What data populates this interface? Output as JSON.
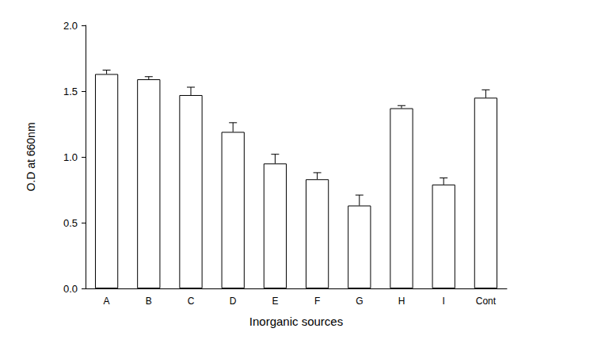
{
  "chart_data": {
    "type": "bar",
    "x_label": "Inorganic sources",
    "y_label": "O.D at 660nm",
    "categories": [
      "A",
      "B",
      "C",
      "D",
      "E",
      "F",
      "G",
      "H",
      "I",
      "Cont"
    ],
    "values": [
      1.63,
      1.59,
      1.47,
      1.19,
      0.95,
      0.83,
      0.63,
      1.37,
      0.79,
      1.45
    ],
    "errors": [
      0.03,
      0.02,
      0.06,
      0.07,
      0.07,
      0.05,
      0.08,
      0.02,
      0.05,
      0.06
    ],
    "color": "#ffffff",
    "ylim": [
      0,
      2.0
    ],
    "yticks": [
      {
        "value": 0,
        "label": "0.0"
      },
      {
        "value": 0.5,
        "label": "0.5"
      },
      {
        "value": 1.0,
        "label": "1.0"
      },
      {
        "value": 1.5,
        "label": "1.5"
      },
      {
        "value": 2.0,
        "label": "2.0"
      }
    ],
    "grid": false
  }
}
